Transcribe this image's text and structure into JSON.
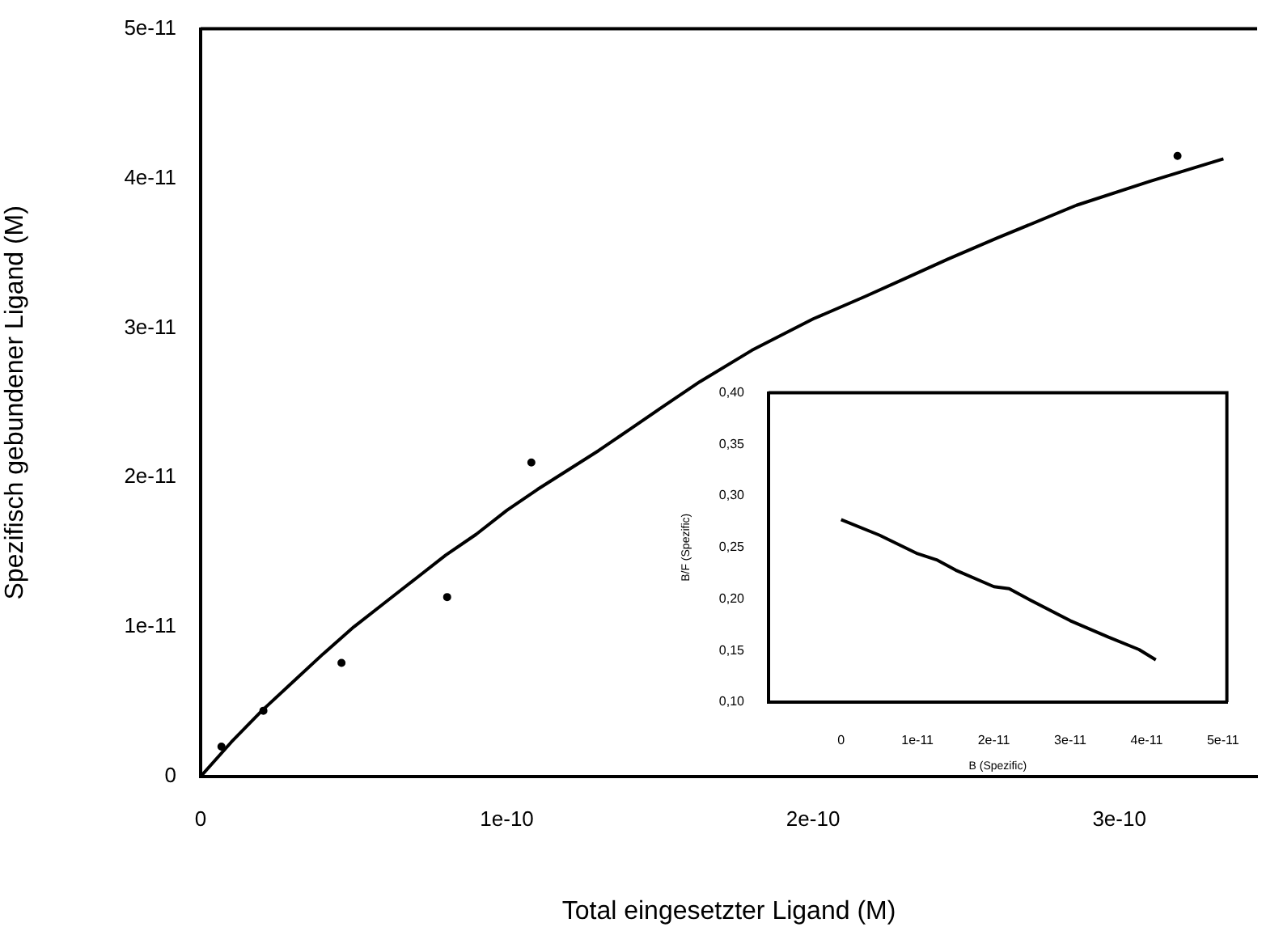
{
  "chart_data": [
    {
      "type": "scatter",
      "xlabel": "Total eingesetzter Ligand (M)",
      "ylabel": "Spezifisch gebundener Ligand (M)",
      "xlim": [
        0,
        3.45e-10
      ],
      "ylim": [
        0,
        5e-11
      ],
      "xticks": [
        0,
        1e-10,
        2e-10,
        3e-10
      ],
      "yticks": [
        0,
        1e-11,
        2e-11,
        3e-11,
        4e-11,
        5e-11
      ],
      "series": [
        {
          "type": "scatter",
          "marker": "circle",
          "color": "#000000",
          "x": [
            6.8e-12,
            2.05e-11,
            4.6e-11,
            8.05e-11,
            1.08e-10,
            3.19e-10
          ],
          "values": [
            2e-12,
            4.4e-12,
            7.6e-12,
            1.2e-11,
            2.1e-11,
            4.15e-11
          ]
        },
        {
          "type": "line",
          "marker": "none",
          "color": "#000000",
          "x": [
            0,
            1e-11,
            2e-11,
            3e-11,
            4e-11,
            5e-11,
            6e-11,
            7e-11,
            8e-11,
            9e-11,
            1e-10,
            1.1e-10,
            1.2e-10,
            1.3e-10,
            1.4e-10,
            1.5e-10,
            1.63e-10,
            1.8e-10,
            2e-10,
            2.17e-10,
            2.3e-10,
            2.44e-10,
            2.6e-10,
            2.86e-10,
            3.1e-10,
            3.34e-10
          ],
          "values": [
            0,
            2.3e-12,
            4.4e-12,
            6.3e-12,
            8.2e-12,
            1e-11,
            1.16e-11,
            1.32e-11,
            1.48e-11,
            1.62e-11,
            1.78e-11,
            1.92e-11,
            2.05e-11,
            2.18e-11,
            2.32e-11,
            2.46e-11,
            2.64e-11,
            2.85e-11,
            3.06e-11,
            3.21e-11,
            3.33e-11,
            3.46e-11,
            3.6e-11,
            3.82e-11,
            3.98e-11,
            4.13e-11
          ]
        }
      ]
    },
    {
      "type": "line",
      "xlabel": "B (Spezific)",
      "ylabel": "B/F (Spezific)",
      "xlim": [
        -9.5e-12,
        5.05e-11
      ],
      "ylim": [
        0.1,
        0.4
      ],
      "xticks": [
        0,
        1e-11,
        2e-11,
        3e-11,
        4e-11,
        5e-11
      ],
      "yticks": [
        {
          "value": 0.1,
          "label": "0,10"
        },
        {
          "value": 0.15,
          "label": "0,15"
        },
        {
          "value": 0.2,
          "label": "0,20"
        },
        {
          "value": 0.25,
          "label": "0,25"
        },
        {
          "value": 0.3,
          "label": "0,30"
        },
        {
          "value": 0.35,
          "label": "0,35"
        },
        {
          "value": 0.4,
          "label": "0,40"
        }
      ],
      "marker": "none",
      "series": [
        {
          "color": "#000000",
          "x": [
            0,
            5e-12,
            1e-11,
            1.25e-11,
            1.5e-11,
            2e-11,
            2.2e-11,
            2.5e-11,
            3e-11,
            3.5e-11,
            3.9e-11,
            4.12e-11
          ],
          "values": [
            0.277,
            0.262,
            0.244,
            0.238,
            0.228,
            0.212,
            0.21,
            0.198,
            0.179,
            0.163,
            0.151,
            0.141
          ]
        }
      ]
    }
  ]
}
